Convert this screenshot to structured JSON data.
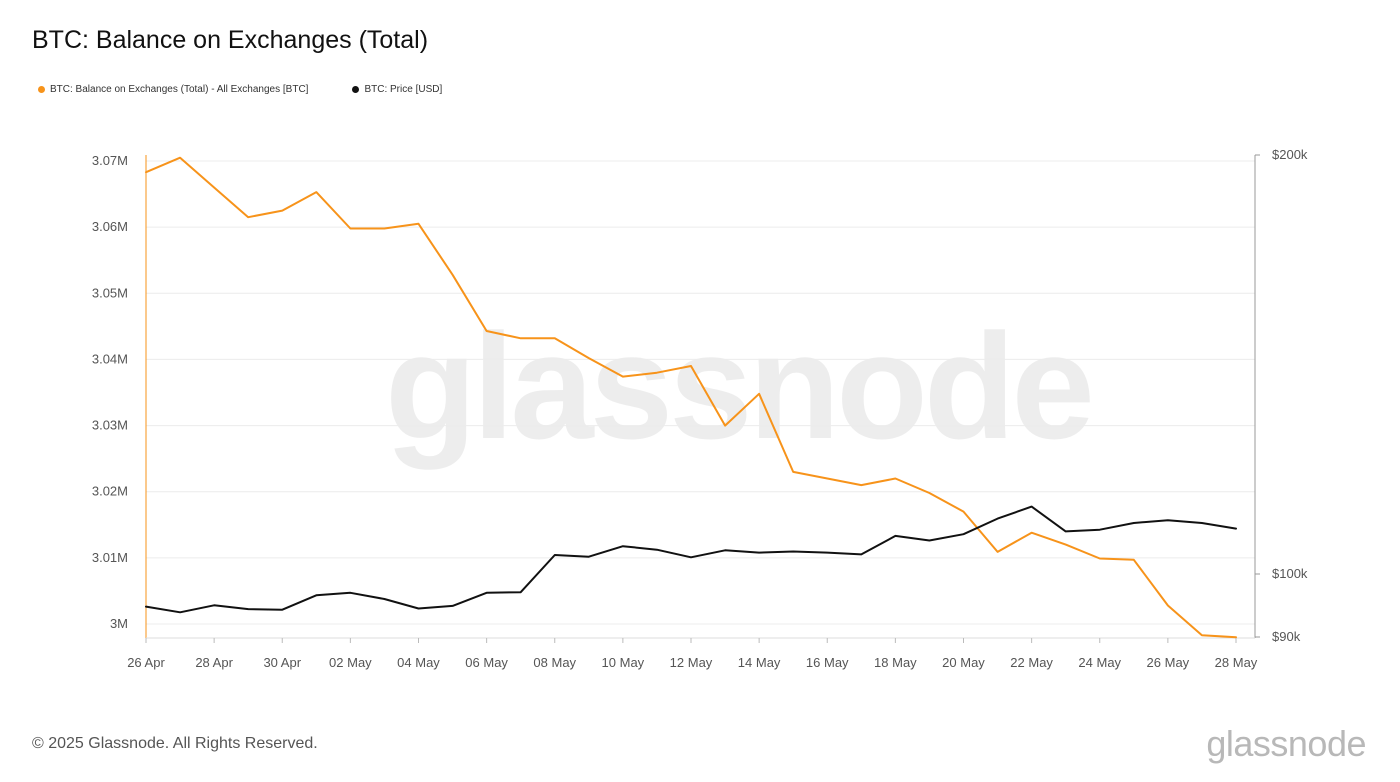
{
  "title": "BTC: Balance on Exchanges (Total)",
  "legend": [
    {
      "label": "BTC: Balance on Exchanges (Total) - All Exchanges [BTC]",
      "color": "#f7931a"
    },
    {
      "label": "BTC: Price [USD]",
      "color": "#111111"
    }
  ],
  "watermark": "glassnode",
  "footer": {
    "copyright": "© 2025 Glassnode. All Rights Reserved.",
    "logo": "glassnode"
  },
  "chart_data": {
    "type": "line",
    "title": "BTC: Balance on Exchanges (Total)",
    "x": [
      "26 Apr",
      "27 Apr",
      "28 Apr",
      "29 Apr",
      "30 Apr",
      "01 May",
      "02 May",
      "03 May",
      "04 May",
      "05 May",
      "06 May",
      "07 May",
      "08 May",
      "09 May",
      "10 May",
      "11 May",
      "12 May",
      "13 May",
      "14 May",
      "15 May",
      "16 May",
      "17 May",
      "18 May",
      "19 May",
      "20 May",
      "21 May",
      "22 May",
      "23 May",
      "24 May",
      "25 May",
      "26 May",
      "27 May",
      "28 May"
    ],
    "x_tick_labels": [
      "26 Apr",
      "28 Apr",
      "30 Apr",
      "02 May",
      "04 May",
      "06 May",
      "08 May",
      "10 May",
      "12 May",
      "14 May",
      "16 May",
      "18 May",
      "20 May",
      "22 May",
      "24 May",
      "26 May",
      "28 May"
    ],
    "y_left": {
      "ticks": [
        3000000,
        3010000,
        3020000,
        3030000,
        3040000,
        3050000,
        3060000,
        3070000
      ],
      "tick_labels": [
        "3M",
        "3.01M",
        "3.02M",
        "3.03M",
        "3.04M",
        "3.05M",
        "3.06M",
        "3.07M"
      ],
      "range": [
        2998000,
        3071000
      ]
    },
    "y_right": {
      "ticks": [
        90000,
        100000,
        200000
      ],
      "tick_labels": [
        "$90k",
        "$100k",
        "$200k"
      ],
      "scale": "log",
      "range": [
        90000,
        200000
      ]
    },
    "grid": true,
    "series": [
      {
        "name": "BTC: Balance on Exchanges (Total) - All Exchanges [BTC]",
        "axis": "left",
        "color": "#f7931a",
        "values": [
          3068300,
          3070500,
          3066000,
          3061500,
          3062500,
          3065300,
          3059800,
          3059800,
          3060500,
          3052800,
          3044300,
          3043200,
          3043200,
          3040200,
          3037400,
          3038000,
          3039000,
          3030000,
          3034800,
          3023000,
          3022000,
          3021000,
          3022000,
          3019800,
          3017000,
          3010900,
          3013800,
          3012000,
          3009900,
          3009700,
          3002800,
          2998300,
          2998000
        ]
      },
      {
        "name": "BTC: Price [USD]",
        "axis": "right",
        "color": "#111111",
        "values": [
          94700,
          93800,
          94900,
          94300,
          94200,
          96500,
          96900,
          95900,
          94400,
          94800,
          96900,
          97000,
          103200,
          102900,
          104700,
          104100,
          102800,
          104000,
          103600,
          103800,
          103600,
          103300,
          106500,
          105700,
          106800,
          109600,
          111800,
          107300,
          107600,
          108800,
          109300,
          108800,
          107800
        ]
      }
    ]
  }
}
